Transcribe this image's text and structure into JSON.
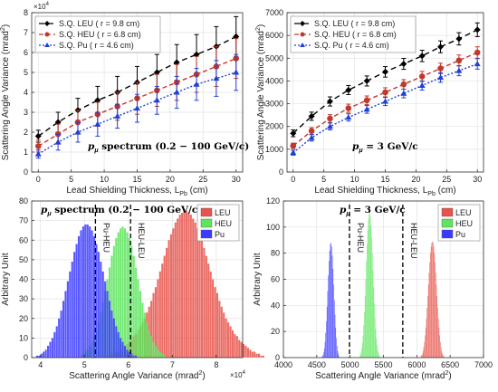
{
  "chart_data": [
    {
      "type": "line",
      "panel": "top-left",
      "annotation": "p_μ spectrum (0.2 − 100 GeV/c)",
      "annotation_parts": {
        "symbol": "p",
        "sub": "μ",
        "rest": " spectrum (0.2 − 100 GeV/c)"
      },
      "xlabel": "Lead Shielding Thickness, L",
      "xlabel_sub": "Pb",
      "xlabel_tail": " (cm)",
      "ylabel": "Scattering Angle Variance (mrad",
      "ylabel_sup": "2",
      "ylabel_tail": ")",
      "exponent_label": "×10",
      "exponent_sup": "4",
      "xlim": [
        -1,
        31
      ],
      "ylim": [
        0,
        8
      ],
      "xticks": [
        0,
        5,
        10,
        15,
        20,
        25,
        30
      ],
      "yticks": [
        0,
        1,
        2,
        3,
        4,
        5,
        6,
        7,
        8
      ],
      "grid": true,
      "legend_position": "top-left",
      "series": [
        {
          "name": "S.Q. LEU ( r = 9.8 cm)",
          "color": "#000000",
          "marker": "diamond",
          "dash": "6,4",
          "x": [
            0,
            3,
            6,
            9,
            12,
            15,
            18,
            21,
            24,
            27,
            30
          ],
          "y": [
            1.8,
            2.5,
            3.1,
            3.6,
            4.0,
            4.5,
            5.0,
            5.5,
            5.9,
            6.3,
            6.8
          ],
          "err": [
            0.3,
            0.5,
            0.6,
            0.7,
            0.8,
            0.8,
            0.9,
            0.9,
            1.0,
            1.0,
            1.0
          ]
        },
        {
          "name": "S.Q. HEU ( r = 6.8 cm)",
          "color": "#c0392b",
          "marker": "circle",
          "dash": "5,3",
          "x": [
            0,
            3,
            6,
            9,
            12,
            15,
            18,
            21,
            24,
            27,
            30
          ],
          "y": [
            1.3,
            1.9,
            2.5,
            2.9,
            3.3,
            3.7,
            4.1,
            4.5,
            4.9,
            5.3,
            5.7
          ],
          "err": [
            0.3,
            0.5,
            0.6,
            0.6,
            0.7,
            0.8,
            0.8,
            0.9,
            0.9,
            1.0,
            1.0
          ]
        },
        {
          "name": "S.Q. Pu     ( r = 4.6 cm)",
          "color": "#1f3fd6",
          "marker": "triangle",
          "dash": "2,2",
          "x": [
            0,
            3,
            6,
            9,
            12,
            15,
            18,
            21,
            24,
            27,
            30
          ],
          "y": [
            0.9,
            1.5,
            2.0,
            2.4,
            2.8,
            3.2,
            3.6,
            4.0,
            4.4,
            4.7,
            5.0
          ],
          "err": [
            0.2,
            0.4,
            0.5,
            0.6,
            0.6,
            0.7,
            0.7,
            0.8,
            0.8,
            0.9,
            0.9
          ]
        }
      ]
    },
    {
      "type": "line",
      "panel": "top-right",
      "annotation": "p_μ = 3 GeV/c",
      "annotation_parts": {
        "symbol": "p",
        "sub": "μ",
        "rest": " = 3 GeV/c"
      },
      "xlabel": "Lead Shielding Thickness, L",
      "xlabel_sub": "Pb",
      "xlabel_tail": " (cm)",
      "ylabel": "Scattering Angle Variance (mrad",
      "ylabel_sup": "2",
      "ylabel_tail": ")",
      "xlim": [
        -1,
        31
      ],
      "ylim": [
        0,
        7000
      ],
      "xticks": [
        0,
        5,
        10,
        15,
        20,
        25,
        30
      ],
      "yticks": [
        0,
        1000,
        2000,
        3000,
        4000,
        5000,
        6000,
        7000
      ],
      "grid": true,
      "legend_position": "top-left",
      "series": [
        {
          "name": "S.Q. LEU ( r = 9.8 cm)",
          "color": "#000000",
          "marker": "diamond",
          "dash": "6,4",
          "x": [
            0,
            3,
            6,
            9,
            12,
            15,
            18,
            21,
            24,
            27,
            30
          ],
          "y": [
            1700,
            2450,
            3100,
            3600,
            4000,
            4400,
            4750,
            5100,
            5500,
            5850,
            6250
          ],
          "err": [
            150,
            180,
            200,
            200,
            220,
            230,
            240,
            250,
            260,
            270,
            300
          ]
        },
        {
          "name": "S.Q. HEU ( r = 6.8 cm)",
          "color": "#c0392b",
          "marker": "circle",
          "dash": "5,3",
          "x": [
            0,
            3,
            6,
            9,
            12,
            15,
            18,
            21,
            24,
            27,
            30
          ],
          "y": [
            1150,
            1800,
            2350,
            2800,
            3150,
            3500,
            3850,
            4200,
            4550,
            4900,
            5250
          ],
          "err": [
            120,
            150,
            170,
            180,
            190,
            200,
            210,
            220,
            230,
            240,
            250
          ]
        },
        {
          "name": "S.Q. Pu     ( r = 4.6 cm)",
          "color": "#1f3fd6",
          "marker": "triangle",
          "dash": "2,2",
          "x": [
            0,
            3,
            6,
            9,
            12,
            15,
            18,
            21,
            24,
            27,
            30
          ],
          "y": [
            850,
            1500,
            2000,
            2400,
            2750,
            3100,
            3450,
            3800,
            4150,
            4450,
            4750
          ],
          "err": [
            110,
            140,
            150,
            160,
            170,
            180,
            190,
            200,
            210,
            220,
            230
          ]
        }
      ]
    },
    {
      "type": "histogram",
      "panel": "bottom-left",
      "annotation": "p_μ spectrum (0.2 − 100 GeV/c)",
      "annotation_parts": {
        "symbol": "p",
        "sub": "μ",
        "rest": " spectrum (0.2 − 100 GeV/c)"
      },
      "xlabel": "Scattering Angle Variance (mrad",
      "xlabel_sup": "2",
      "xlabel_tail": ")",
      "ylabel": "Arbitrary Unit",
      "exponent_label": "×10",
      "exponent_sup": "4",
      "xlim": [
        3.8,
        8.6
      ],
      "ylim": [
        0,
        80
      ],
      "xticks": [
        4,
        5,
        6,
        7,
        8
      ],
      "yticks": [
        0,
        10,
        20,
        30,
        40,
        50,
        60,
        70,
        80
      ],
      "grid": true,
      "legend_position": "top-right",
      "threshold_lines": [
        {
          "x": 5.25,
          "label": "Pu-HEU"
        },
        {
          "x": 6.05,
          "label": "HEU-LEU"
        }
      ],
      "series": [
        {
          "name": "LEU",
          "color": "#e8534b",
          "bin_start": 5.5,
          "bin_width": 0.05,
          "counts": [
            1,
            1,
            2,
            2,
            3,
            3,
            4,
            5,
            6,
            7,
            8,
            9,
            11,
            12,
            14,
            16,
            18,
            20,
            23,
            26,
            29,
            33,
            36,
            40,
            44,
            48,
            52,
            56,
            60,
            63,
            66,
            69,
            71,
            73,
            74,
            75,
            75,
            74,
            73,
            71,
            69,
            66,
            63,
            60,
            56,
            52,
            48,
            44,
            40,
            36,
            33,
            29,
            26,
            23,
            20,
            18,
            16,
            14,
            12,
            11,
            9,
            8,
            7,
            6,
            5,
            4,
            3,
            3,
            2,
            2,
            1,
            1
          ]
        },
        {
          "name": "HEU",
          "color": "#5ce65c",
          "bin_start": 4.9,
          "bin_width": 0.05,
          "counts": [
            1,
            2,
            3,
            4,
            6,
            8,
            11,
            14,
            18,
            23,
            28,
            34,
            40,
            46,
            52,
            57,
            61,
            64,
            66,
            67,
            66,
            64,
            61,
            57,
            52,
            46,
            40,
            34,
            28,
            23,
            18,
            14,
            11,
            8,
            6,
            4,
            3,
            2,
            1
          ]
        },
        {
          "name": "Pu",
          "color": "#3b3bff",
          "bin_start": 3.9,
          "bin_width": 0.05,
          "counts": [
            1,
            1,
            2,
            3,
            4,
            6,
            8,
            10,
            13,
            16,
            20,
            24,
            29,
            34,
            39,
            44,
            49,
            54,
            58,
            62,
            65,
            67,
            68,
            68,
            67,
            65,
            62,
            58,
            54,
            49,
            44,
            39,
            34,
            29,
            24,
            20,
            16,
            13,
            10,
            8,
            6,
            4,
            3,
            2,
            1,
            1
          ]
        }
      ]
    },
    {
      "type": "histogram",
      "panel": "bottom-right",
      "annotation": "p_μ = 3 GeV/c",
      "annotation_parts": {
        "symbol": "p",
        "sub": "μ",
        "rest": " = 3 GeV/c"
      },
      "xlabel": "Scattering Angle Variance (mrad",
      "xlabel_sup": "2",
      "xlabel_tail": ")",
      "ylabel": "Arbitrary Unit",
      "xlim": [
        4000,
        7000
      ],
      "ylim": [
        0,
        120
      ],
      "xticks": [
        4000,
        4500,
        5000,
        5500,
        6000,
        6500,
        7000
      ],
      "yticks": [
        0,
        20,
        40,
        60,
        80,
        100,
        120
      ],
      "grid": true,
      "legend_position": "top-right",
      "threshold_lines": [
        {
          "x": 4990,
          "label": "Pu-HEU"
        },
        {
          "x": 5790,
          "label": "HEU-LEU"
        }
      ],
      "series": [
        {
          "name": "LEU",
          "color": "#e8534b",
          "bin_start": 6060,
          "bin_width": 10,
          "counts": [
            1,
            2,
            3,
            5,
            8,
            12,
            17,
            23,
            30,
            38,
            47,
            56,
            65,
            73,
            80,
            85,
            88,
            89,
            88,
            85,
            80,
            73,
            65,
            56,
            47,
            38,
            30,
            23,
            17,
            12,
            8,
            5,
            3,
            2,
            1
          ]
        },
        {
          "name": "HEU",
          "color": "#5ce65c",
          "bin_start": 5140,
          "bin_width": 10,
          "counts": [
            1,
            2,
            4,
            7,
            11,
            17,
            25,
            35,
            47,
            60,
            74,
            87,
            98,
            106,
            110,
            111,
            108,
            101,
            92,
            80,
            67,
            54,
            42,
            31,
            22,
            15,
            10,
            6,
            4,
            2,
            1
          ]
        },
        {
          "name": "Pu",
          "color": "#3b3bff",
          "bin_start": 4580,
          "bin_width": 10,
          "counts": [
            1,
            2,
            4,
            7,
            12,
            19,
            28,
            39,
            51,
            63,
            74,
            82,
            87,
            88,
            85,
            78,
            68,
            56,
            44,
            33,
            23,
            15,
            9,
            5,
            3,
            1
          ]
        }
      ]
    }
  ]
}
